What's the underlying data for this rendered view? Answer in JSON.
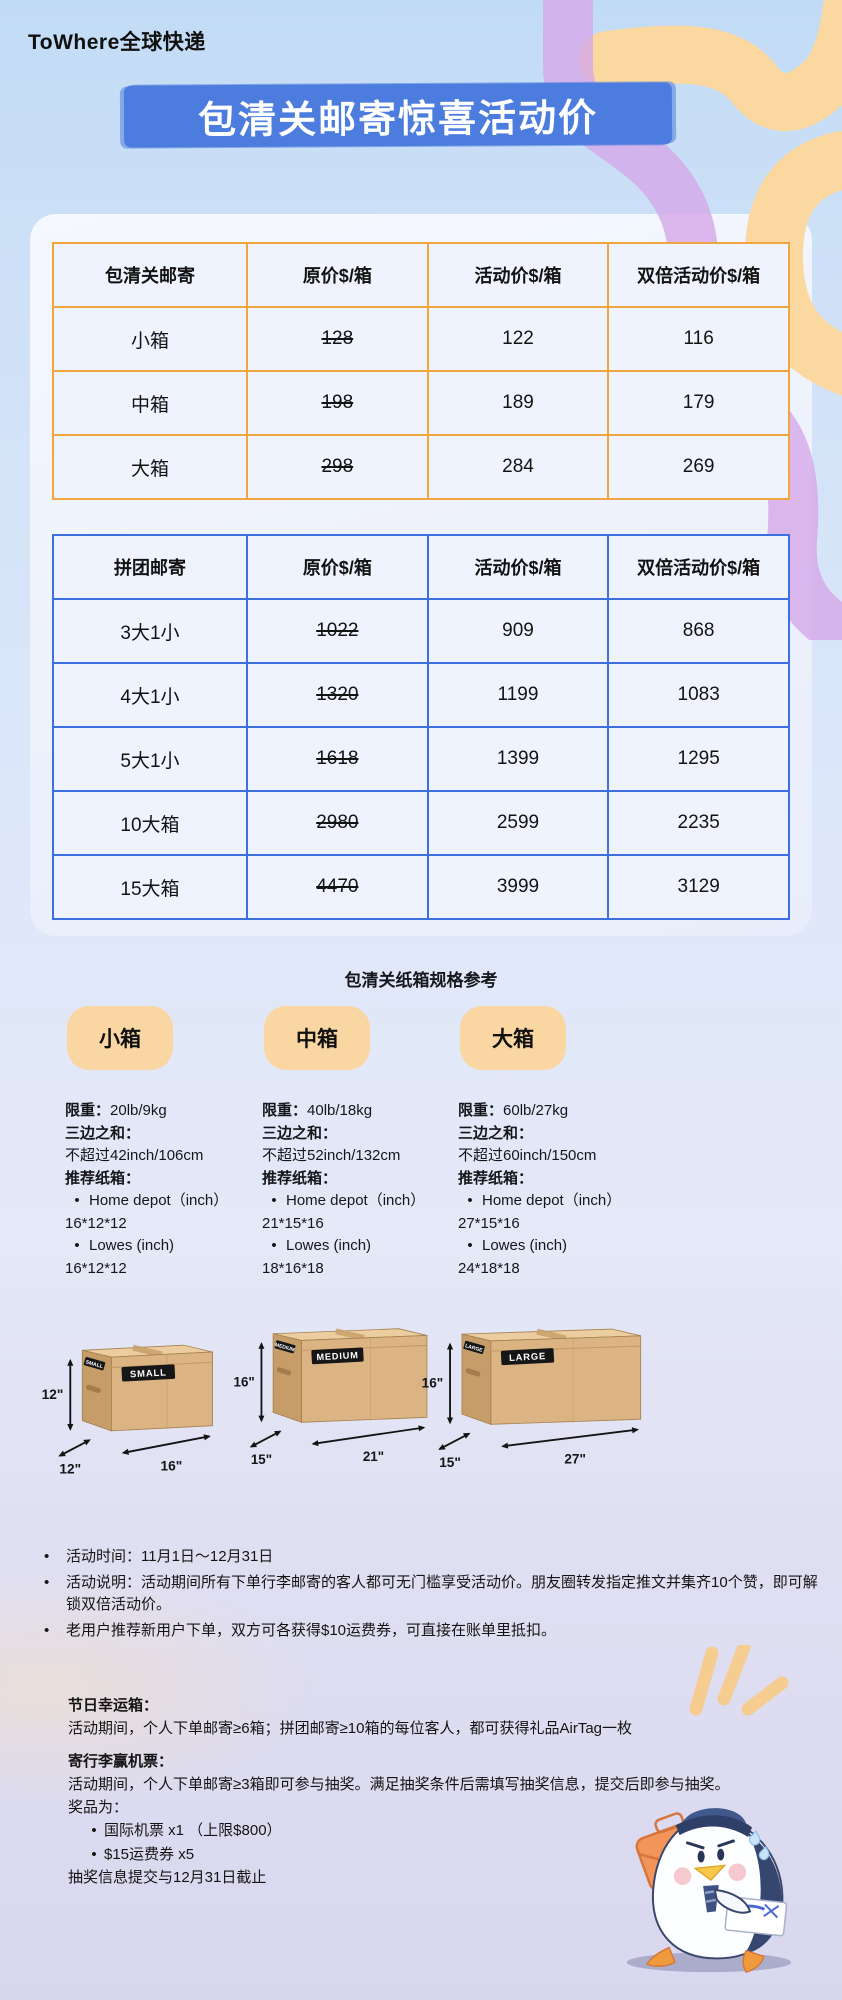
{
  "header": {
    "brand": "ToWhere全球快递",
    "title": "包清关邮寄惊喜活动价"
  },
  "tables": [
    {
      "name": "clearance-shipping",
      "accent": "#F0A63C",
      "headers": [
        "包清关邮寄",
        "原价$/箱",
        "活动价$/箱",
        "双倍活动价$/箱"
      ],
      "rows": [
        {
          "label": "小箱",
          "original": "128",
          "promo": "122",
          "double_promo": "116"
        },
        {
          "label": "中箱",
          "original": "198",
          "promo": "189",
          "double_promo": "179"
        },
        {
          "label": "大箱",
          "original": "298",
          "promo": "284",
          "double_promo": "269"
        }
      ]
    },
    {
      "name": "group-shipping",
      "accent": "#3D6FDF",
      "headers": [
        "拼团邮寄",
        "原价$/箱",
        "活动价$/箱",
        "双倍活动价$/箱"
      ],
      "rows": [
        {
          "label": "3大1小",
          "original": "1022",
          "promo": "909",
          "double_promo": "868"
        },
        {
          "label": "4大1小",
          "original": "1320",
          "promo": "1199",
          "double_promo": "1083"
        },
        {
          "label": "5大1小",
          "original": "1618",
          "promo": "1399",
          "double_promo": "1295"
        },
        {
          "label": "10大箱",
          "original": "2980",
          "promo": "2599",
          "double_promo": "2235"
        },
        {
          "label": "15大箱",
          "original": "4470",
          "promo": "3999",
          "double_promo": "3129"
        }
      ]
    }
  ],
  "specs": {
    "heading": "包清关纸箱规格参考",
    "columns": [
      {
        "badge": "小箱",
        "weight_label": "限重：",
        "weight": "20lb/9kg",
        "sum_label": "三边之和：",
        "sum": "不超过42inch/106cm",
        "rec_label": "推荐纸箱：",
        "recommendations": [
          {
            "name": "Home depot（inch）",
            "dims": "16*12*12"
          },
          {
            "name": "Lowes (inch)",
            "dims": "16*12*12"
          }
        ],
        "box": {
          "label": "SMALL",
          "height": "12\"",
          "depth": "12\"",
          "width": "16\""
        }
      },
      {
        "badge": "中箱",
        "weight_label": "限重：",
        "weight": "40lb/18kg",
        "sum_label": "三边之和：",
        "sum": "不超过52inch/132cm",
        "rec_label": "推荐纸箱：",
        "recommendations": [
          {
            "name": "Home depot（inch）",
            "dims": "21*15*16"
          },
          {
            "name": "Lowes (inch)",
            "dims": "18*16*18"
          }
        ],
        "box": {
          "label": "MEDIUM",
          "height": "16\"",
          "depth": "15\"",
          "width": "21\""
        }
      },
      {
        "badge": "大箱",
        "weight_label": "限重：",
        "weight": "60lb/27kg",
        "sum_label": "三边之和：",
        "sum": "不超过60inch/150cm",
        "rec_label": "推荐纸箱：",
        "recommendations": [
          {
            "name": "Home depot（inch）",
            "dims": "27*15*16"
          },
          {
            "name": "Lowes (inch)",
            "dims": "24*18*18"
          }
        ],
        "box": {
          "label": "LARGE",
          "height": "16\"",
          "depth": "15\"",
          "width": "27\""
        }
      }
    ]
  },
  "notes": [
    "活动时间：11月1日～12月31日",
    "活动说明：活动期间所有下单行李邮寄的客人都可无门槛享受活动价。朋友圈转发指定推文并集齐10个赞，即可解锁双倍活动价。",
    "老用户推荐新用户下单，双方可各获得$10运费券，可直接在账单里抵扣。"
  ],
  "promo": {
    "lucky_title": "节日幸运箱：",
    "lucky_body": "活动期间，个人下单邮寄≥6箱；拼团邮寄≥10箱的每位客人，都可获得礼品AirTag一枚",
    "ticket_title": "寄行李赢机票：",
    "ticket_body": "活动期间，个人下单邮寄≥3箱即可参与抽奖。满足抽奖条件后需填写抽奖信息，提交后即参与抽奖。",
    "prizes_label": "奖品为：",
    "prizes": [
      "国际机票 x1 （上限$800）",
      "$15运费券 x5"
    ],
    "deadline": "抽奖信息提交与12月31日截止"
  },
  "colors": {
    "banner": "#4C7CDE",
    "table_clearance_border": "#F0A63C",
    "table_group_border": "#3D6FDF",
    "badge": "#FAD7A2",
    "ribbon_orange": "#FAD8A0",
    "ribbon_purple": "#D5A7E9"
  }
}
